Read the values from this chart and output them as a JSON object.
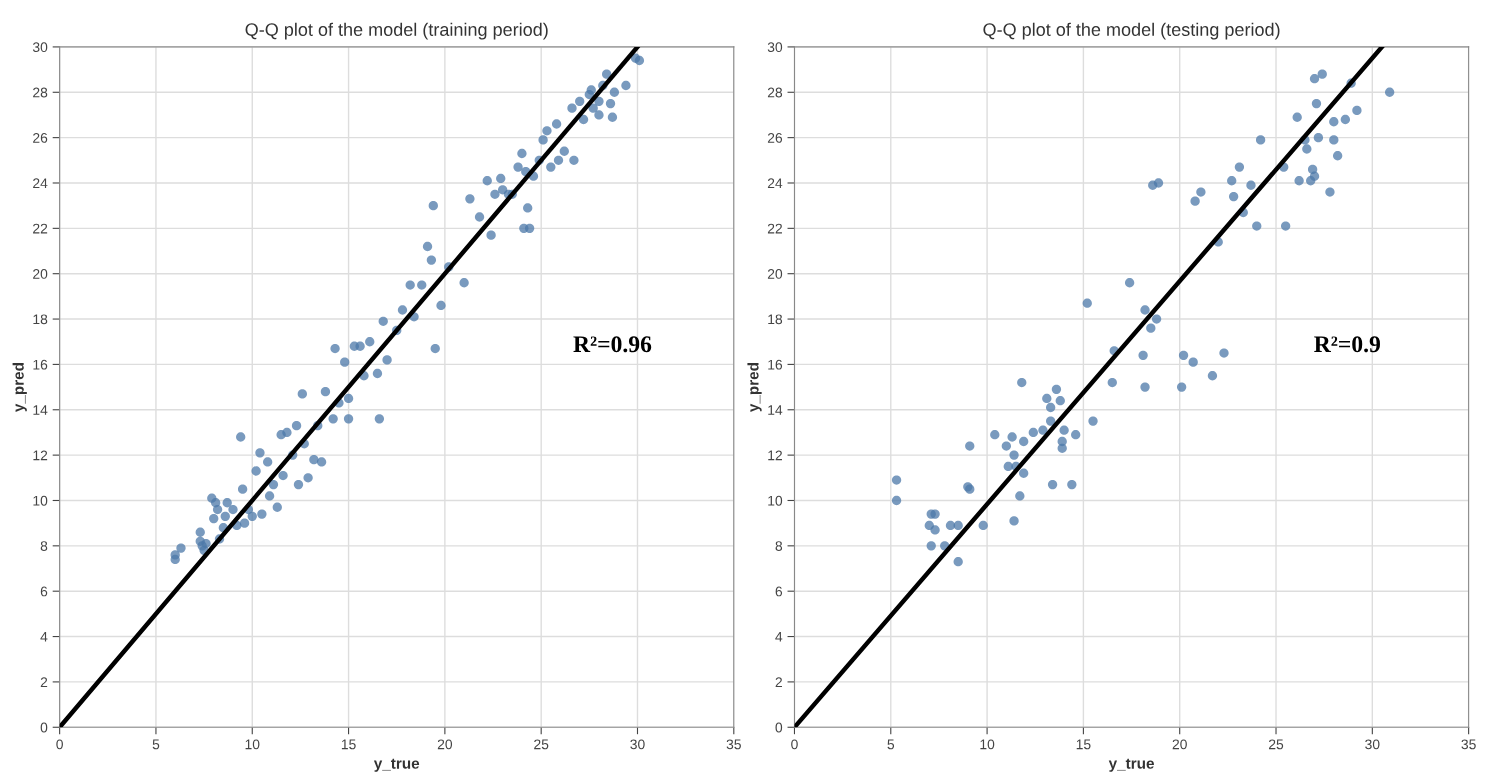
{
  "chart_data": [
    {
      "type": "scatter",
      "title": "Q-Q plot of the model (training period)",
      "xlabel": "y_true",
      "ylabel": "y_pred",
      "annotations": [
        "R²=0.96"
      ],
      "xlim": [
        0,
        35
      ],
      "ylim": [
        0,
        30
      ],
      "xticks": [
        0,
        5,
        10,
        15,
        20,
        25,
        30,
        35
      ],
      "yticks": [
        0,
        2,
        4,
        6,
        8,
        10,
        12,
        14,
        16,
        18,
        20,
        22,
        24,
        26,
        28,
        30
      ],
      "grid": true,
      "marker": "circle",
      "series": [
        {
          "color": "#4c78a8",
          "x": [
            6.0,
            6.0,
            6.3,
            7.3,
            7.3,
            7.4,
            7.5,
            7.6,
            7.9,
            8.0,
            8.1,
            8.2,
            8.3,
            8.5,
            8.6,
            8.7,
            9.0,
            9.2,
            9.4,
            9.5,
            9.6,
            9.8,
            10.0,
            10.2,
            10.4,
            10.5,
            10.8,
            10.9,
            11.1,
            11.3,
            11.5,
            11.6,
            11.8,
            12.1,
            12.3,
            12.4,
            12.6,
            12.7,
            12.9,
            13.2,
            13.4,
            13.6,
            13.8,
            14.2,
            14.3,
            14.5,
            14.8,
            15.0,
            15.0,
            15.3,
            15.6,
            15.8,
            16.1,
            16.5,
            16.6,
            16.8,
            17.0,
            17.5,
            17.8,
            18.2,
            18.4,
            18.8,
            19.1,
            19.3,
            19.4,
            19.5,
            19.8,
            20.2,
            21.0,
            21.3,
            21.8,
            22.2,
            22.4,
            22.6,
            22.9,
            23.0,
            23.3,
            23.5,
            23.8,
            24.0,
            24.1,
            24.2,
            24.3,
            24.4,
            24.6,
            24.9,
            25.1,
            25.3,
            25.5,
            25.8,
            25.9,
            26.2,
            26.6,
            26.7,
            27.0,
            27.2,
            27.5,
            27.7,
            28.0,
            28.2,
            28.4,
            28.6,
            28.7,
            28.8,
            29.4,
            29.9,
            30.1,
            27.6,
            28.0
          ],
          "values": [
            7.6,
            7.4,
            7.9,
            8.6,
            8.2,
            8.0,
            7.8,
            8.1,
            10.1,
            9.2,
            9.9,
            9.6,
            8.3,
            8.8,
            9.3,
            9.9,
            9.6,
            8.9,
            12.8,
            10.5,
            9.0,
            9.6,
            9.3,
            11.3,
            12.1,
            9.4,
            11.7,
            10.2,
            10.7,
            9.7,
            12.9,
            11.1,
            13.0,
            12.0,
            13.3,
            10.7,
            14.7,
            12.5,
            11.0,
            11.8,
            13.3,
            11.7,
            14.8,
            13.6,
            16.7,
            14.3,
            16.1,
            14.5,
            13.6,
            16.8,
            16.8,
            15.5,
            17.0,
            15.6,
            13.6,
            17.9,
            16.2,
            17.5,
            18.4,
            19.5,
            18.1,
            19.5,
            21.2,
            20.6,
            23.0,
            16.7,
            18.6,
            20.3,
            19.6,
            23.3,
            22.5,
            24.1,
            21.7,
            23.5,
            24.2,
            23.7,
            23.5,
            23.5,
            24.7,
            25.3,
            22.0,
            24.5,
            22.9,
            22.0,
            24.3,
            25.0,
            25.9,
            26.3,
            24.7,
            26.6,
            25.0,
            25.4,
            27.3,
            25.0,
            27.6,
            26.8,
            27.9,
            27.3,
            27.6,
            28.3,
            28.8,
            27.5,
            26.9,
            28.0,
            28.3,
            29.5,
            29.4,
            28.1,
            27.0
          ]
        },
        {
          "type": "line",
          "color": "#000000",
          "marker": "none",
          "x": [
            0,
            30
          ],
          "values": [
            0,
            30
          ]
        }
      ]
    },
    {
      "type": "scatter",
      "title": "Q-Q plot of the model (testing period)",
      "xlabel": "y_true",
      "ylabel": "y_pred",
      "annotations": [
        "R²=0.9"
      ],
      "xlim": [
        0,
        35
      ],
      "ylim": [
        0,
        30
      ],
      "xticks": [
        0,
        5,
        10,
        15,
        20,
        25,
        30,
        35
      ],
      "yticks": [
        0,
        2,
        4,
        6,
        8,
        10,
        12,
        14,
        16,
        18,
        20,
        22,
        24,
        26,
        28,
        30
      ],
      "grid": true,
      "marker": "circle",
      "series": [
        {
          "color": "#4c78a8",
          "x": [
            5.3,
            5.3,
            7.1,
            7.3,
            7.0,
            7.3,
            8.1,
            8.5,
            7.1,
            7.8,
            8.5,
            9.8,
            9.0,
            9.1,
            9.1,
            10.4,
            11.0,
            11.3,
            11.4,
            11.9,
            11.1,
            11.5,
            11.9,
            11.7,
            11.4,
            11.8,
            13.1,
            13.6,
            13.8,
            13.3,
            13.3,
            12.9,
            12.4,
            14.0,
            14.6,
            13.9,
            13.9,
            13.4,
            14.4,
            15.5,
            30.9,
            27.4,
            27.0,
            28.9,
            27.1,
            26.1,
            29.2,
            28.6,
            28.0,
            24.2,
            26.5,
            27.2,
            28.0,
            26.6,
            28.2,
            23.1,
            25.4,
            26.9,
            22.7,
            23.7,
            26.2,
            26.8,
            27.0,
            27.8,
            18.6,
            18.9,
            21.1,
            20.8,
            22.8,
            23.3,
            24.0,
            25.5,
            22.0,
            17.4,
            15.2,
            18.2,
            18.8,
            18.5,
            16.6,
            18.1,
            20.2,
            20.7,
            22.3,
            21.7,
            16.5,
            18.2,
            20.1
          ],
          "values": [
            10.9,
            10.0,
            9.4,
            9.4,
            8.9,
            8.7,
            8.9,
            8.9,
            8.0,
            8.0,
            7.3,
            8.9,
            10.6,
            10.5,
            12.4,
            12.9,
            12.4,
            12.8,
            12.0,
            12.6,
            11.5,
            11.5,
            11.2,
            10.2,
            9.1,
            15.2,
            14.5,
            14.9,
            14.4,
            14.1,
            13.5,
            13.1,
            13.0,
            13.1,
            12.9,
            12.6,
            12.3,
            10.7,
            10.7,
            13.5,
            28.0,
            28.8,
            28.6,
            28.4,
            27.5,
            26.9,
            27.2,
            26.8,
            26.7,
            25.9,
            25.9,
            26.0,
            25.9,
            25.5,
            25.2,
            24.7,
            24.7,
            24.6,
            24.1,
            23.9,
            24.1,
            24.1,
            24.3,
            23.6,
            23.9,
            24.0,
            23.6,
            23.2,
            23.4,
            22.7,
            22.1,
            22.1,
            21.4,
            19.6,
            18.7,
            18.4,
            18.0,
            17.6,
            16.6,
            16.4,
            16.4,
            16.1,
            16.5,
            15.5,
            15.2,
            15.0,
            15.0
          ]
        },
        {
          "type": "line",
          "color": "#000000",
          "marker": "none",
          "x": [
            0,
            30.5
          ],
          "values": [
            0,
            30
          ]
        }
      ]
    }
  ]
}
